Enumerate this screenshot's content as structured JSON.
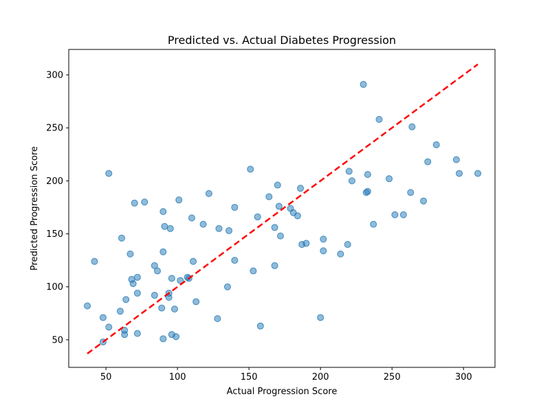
{
  "chart_data": {
    "type": "scatter",
    "title": "Predicted vs. Actual Diabetes Progression",
    "xlabel": "Actual Progression Score",
    "ylabel": "Predicted Progression Score",
    "xlim": [
      24,
      322
    ],
    "ylim": [
      24,
      324
    ],
    "xticks": [
      50,
      100,
      150,
      200,
      250,
      300
    ],
    "yticks": [
      50,
      100,
      150,
      200,
      250,
      300
    ],
    "grid": false,
    "point_color": "#1f77b4",
    "point_alpha": 0.5,
    "reference_line": {
      "style": "dashed",
      "color": "#ff0000",
      "from": [
        37,
        37
      ],
      "to": [
        310,
        310
      ]
    },
    "points": [
      [
        37,
        82
      ],
      [
        42,
        124
      ],
      [
        48,
        71
      ],
      [
        48,
        48
      ],
      [
        52,
        207
      ],
      [
        52,
        62
      ],
      [
        60,
        77
      ],
      [
        61,
        146
      ],
      [
        63,
        59
      ],
      [
        63,
        55
      ],
      [
        64,
        88
      ],
      [
        67,
        131
      ],
      [
        68,
        107
      ],
      [
        69,
        103
      ],
      [
        70,
        179
      ],
      [
        72,
        109
      ],
      [
        72,
        94
      ],
      [
        72,
        56
      ],
      [
        77,
        180
      ],
      [
        84,
        120
      ],
      [
        84,
        92
      ],
      [
        86,
        115
      ],
      [
        89,
        80
      ],
      [
        90,
        171
      ],
      [
        90,
        133
      ],
      [
        90,
        51
      ],
      [
        91,
        157
      ],
      [
        94,
        94
      ],
      [
        94,
        90
      ],
      [
        95,
        155
      ],
      [
        96,
        108
      ],
      [
        96,
        55
      ],
      [
        98,
        79
      ],
      [
        99,
        53
      ],
      [
        101,
        182
      ],
      [
        102,
        106
      ],
      [
        107,
        109
      ],
      [
        108,
        108
      ],
      [
        110,
        165
      ],
      [
        111,
        124
      ],
      [
        113,
        86
      ],
      [
        118,
        159
      ],
      [
        122,
        188
      ],
      [
        128,
        70
      ],
      [
        129,
        155
      ],
      [
        135,
        100
      ],
      [
        136,
        153
      ],
      [
        140,
        175
      ],
      [
        140,
        125
      ],
      [
        151,
        211
      ],
      [
        153,
        115
      ],
      [
        156,
        166
      ],
      [
        158,
        63
      ],
      [
        164,
        185
      ],
      [
        168,
        156
      ],
      [
        168,
        120
      ],
      [
        170,
        196
      ],
      [
        171,
        176
      ],
      [
        172,
        148
      ],
      [
        179,
        174
      ],
      [
        181,
        170
      ],
      [
        184,
        167
      ],
      [
        186,
        193
      ],
      [
        187,
        140
      ],
      [
        190,
        141
      ],
      [
        200,
        71
      ],
      [
        202,
        145
      ],
      [
        202,
        134
      ],
      [
        214,
        131
      ],
      [
        219,
        140
      ],
      [
        220,
        209
      ],
      [
        222,
        200
      ],
      [
        230,
        291
      ],
      [
        232,
        189
      ],
      [
        233,
        190
      ],
      [
        233,
        206
      ],
      [
        237,
        159
      ],
      [
        241,
        258
      ],
      [
        248,
        202
      ],
      [
        252,
        168
      ],
      [
        258,
        168
      ],
      [
        263,
        189
      ],
      [
        264,
        251
      ],
      [
        272,
        181
      ],
      [
        275,
        218
      ],
      [
        281,
        234
      ],
      [
        295,
        220
      ],
      [
        297,
        207
      ],
      [
        310,
        207
      ]
    ]
  }
}
